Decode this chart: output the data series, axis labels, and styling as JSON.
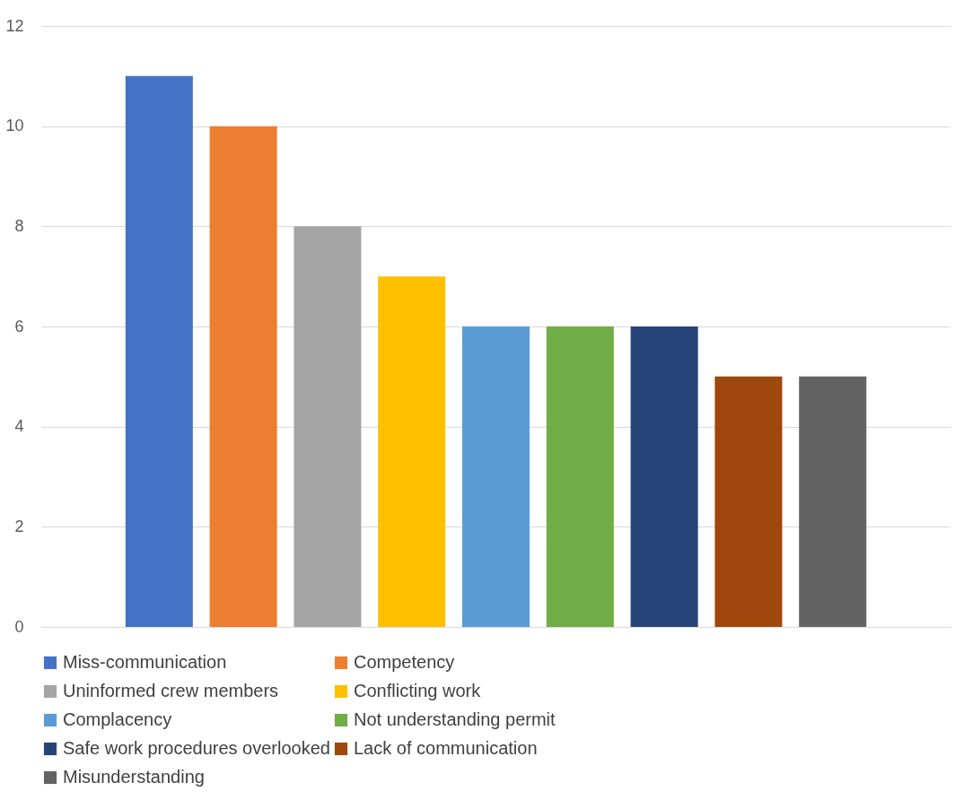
{
  "chart_data": {
    "type": "bar",
    "categories": [
      null
    ],
    "series": [
      {
        "name": "Miss-communication",
        "color": "#4472c4",
        "values": [
          11
        ]
      },
      {
        "name": "Competency",
        "color": "#ed7d31",
        "values": [
          10
        ]
      },
      {
        "name": "Uninformed crew members",
        "color": "#a5a5a5",
        "values": [
          8
        ]
      },
      {
        "name": "Conflicting work",
        "color": "#ffc000",
        "values": [
          7
        ]
      },
      {
        "name": "Complacency",
        "color": "#5b9bd5",
        "values": [
          6
        ]
      },
      {
        "name": "Not understanding permit",
        "color": "#70ad47",
        "values": [
          6
        ]
      },
      {
        "name": "Safe work procedures overlooked",
        "color": "#264478",
        "values": [
          6
        ]
      },
      {
        "name": "Lack of communication",
        "color": "#9e480e",
        "values": [
          5
        ]
      },
      {
        "name": "Misunderstanding",
        "color": "#636363",
        "values": [
          5
        ]
      }
    ],
    "ylim": [
      0,
      12
    ],
    "yticks": [
      0,
      2,
      4,
      6,
      8,
      10,
      12
    ],
    "grid": "y",
    "legend": "bottom",
    "tick_labels": "y"
  }
}
